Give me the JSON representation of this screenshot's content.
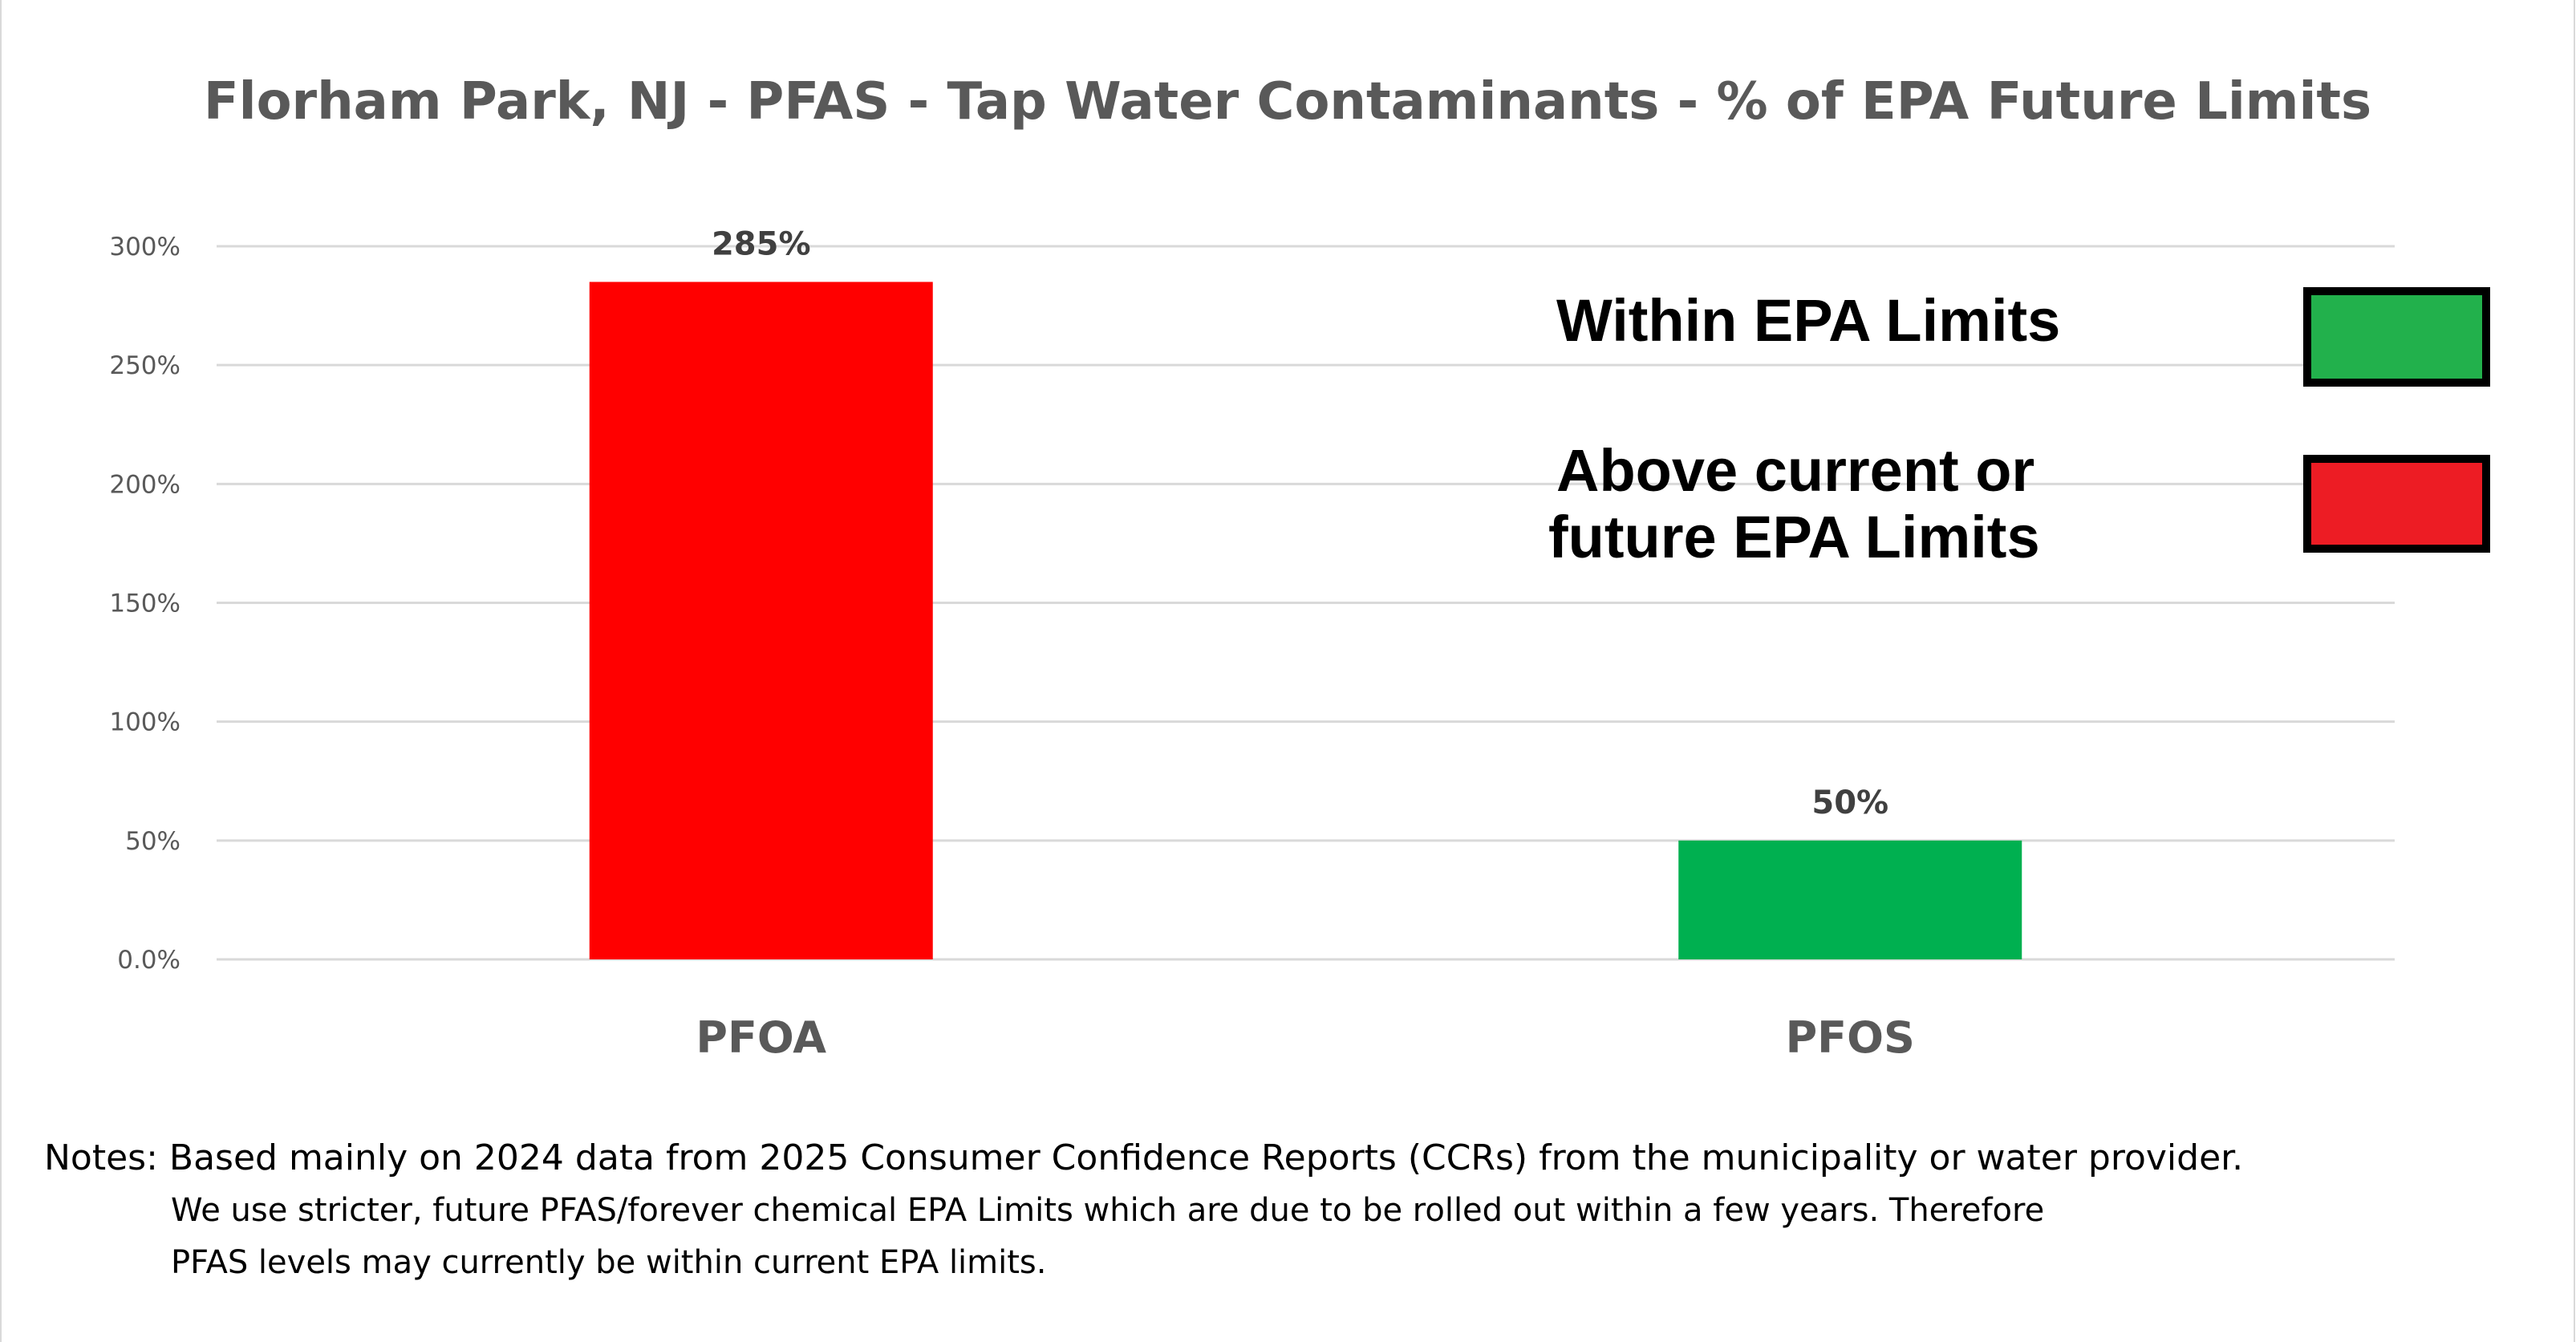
{
  "chart_data": {
    "type": "bar",
    "title": "Florham Park, NJ - PFAS - Tap Water Contaminants - % of EPA Future Limits",
    "categories": [
      "PFOA",
      "PFOS"
    ],
    "values": [
      285,
      50
    ],
    "data_labels": [
      "285%",
      "50%"
    ],
    "bar_colors": [
      "#FF0000",
      "#00B050"
    ],
    "ylim": [
      0,
      300
    ],
    "yticks": [
      0,
      50,
      100,
      150,
      200,
      250,
      300
    ],
    "ytick_labels": [
      "0.0%",
      "50%",
      "100%",
      "150%",
      "200%",
      "250%",
      "300%"
    ],
    "grid": true,
    "xlabel": "",
    "ylabel": "",
    "legend": {
      "placement": "right",
      "items": [
        {
          "lines": [
            "Within  EPA Limits"
          ],
          "color": "#22B14C"
        },
        {
          "lines": [
            "Above current or",
            "future  EPA Limits"
          ],
          "color": "#ED1C24"
        }
      ]
    }
  },
  "notes": {
    "line1": "Notes: Based mainly on 2024 data from 2025 Consumer Confidence Reports (CCRs) from the municipality or water provider.",
    "line2": "We use stricter, future PFAS/forever chemical EPA Limits which are due to be rolled out within a few years.  Therefore",
    "line3": "PFAS  levels may currently be within current EPA limits."
  }
}
